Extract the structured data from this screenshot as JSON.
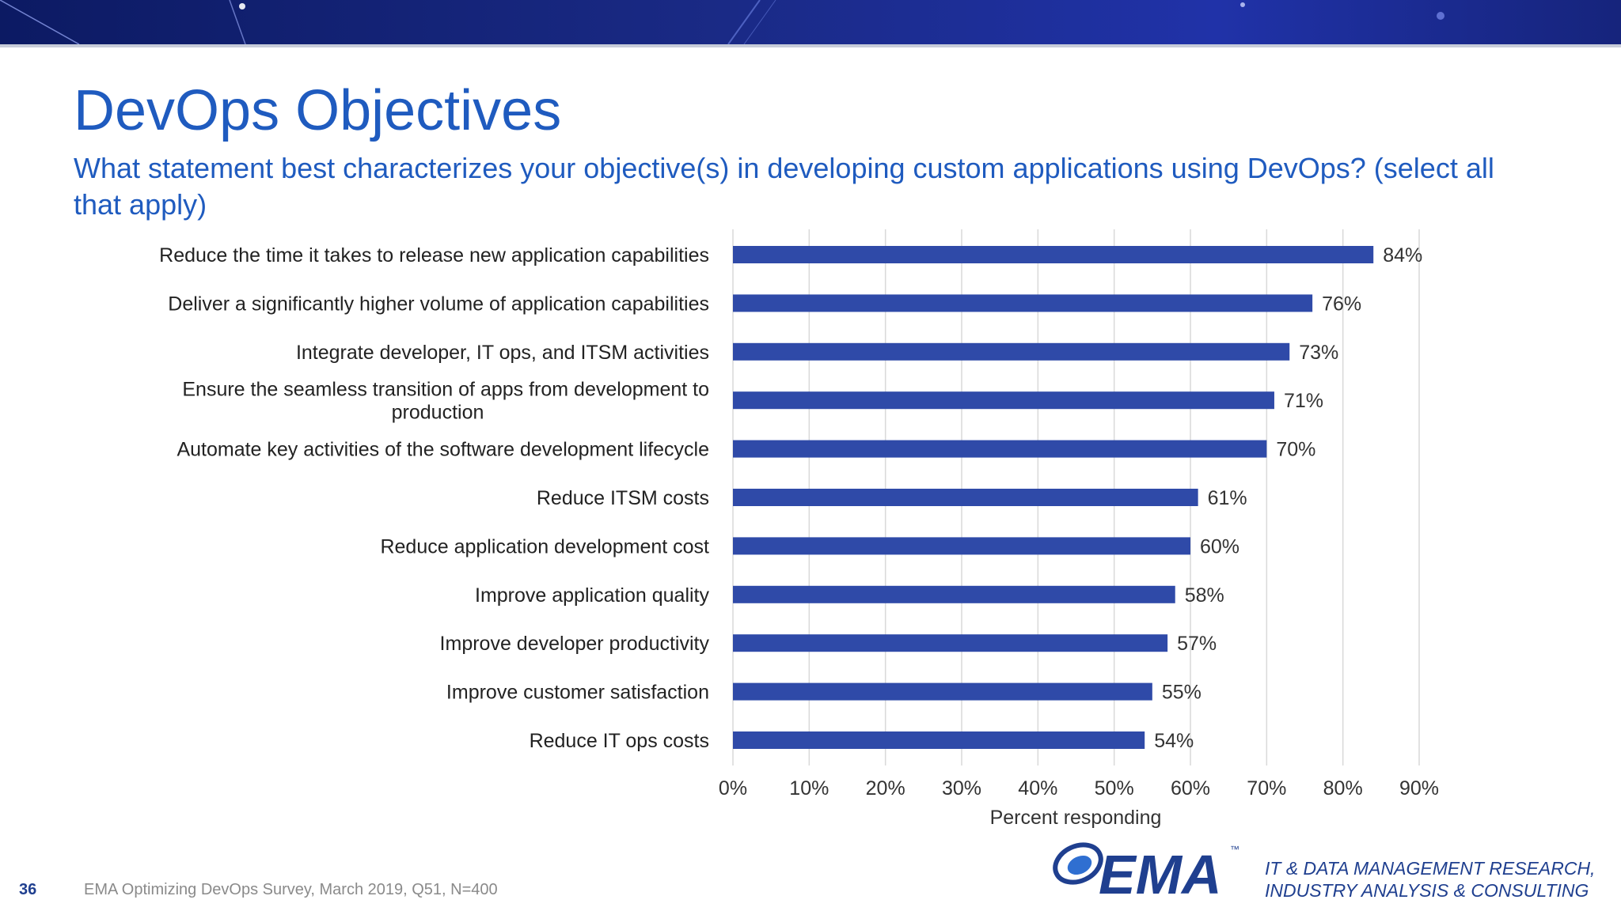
{
  "slide": {
    "title": "DevOps Objectives",
    "subtitle": "What statement best characterizes your objective(s) in developing custom applications using DevOps? (select all that apply)",
    "page_number": "36",
    "source": "EMA  Optimizing DevOps Survey, March 2019, Q51, N=400",
    "tagline_line1": "IT & DATA MANAGEMENT RESEARCH,",
    "tagline_line2": "INDUSTRY ANALYSIS & CONSULTING",
    "logo_text": "EMA",
    "logo_mark": "™"
  },
  "colors": {
    "bar": "#2f4aa8",
    "title": "#1f5bbf",
    "banner": "#132178"
  },
  "chart_data": {
    "type": "bar",
    "orientation": "horizontal",
    "categories": [
      "Reduce the time it takes to release new application capabilities",
      "Deliver a significantly higher volume of application capabilities",
      "Integrate developer, IT ops, and ITSM activities",
      "Ensure the seamless transition of apps from development to production",
      "Automate key activities of the software development lifecycle",
      "Reduce ITSM costs",
      "Reduce application development cost",
      "Improve application quality",
      "Improve developer productivity",
      "Improve customer satisfaction",
      "Reduce IT ops costs"
    ],
    "category_lines": [
      [
        "Reduce the time it takes to release new application capabilities"
      ],
      [
        "Deliver a significantly higher volume of application capabilities"
      ],
      [
        "Integrate developer, IT ops, and ITSM activities"
      ],
      [
        "Ensure the seamless transition of apps from development to",
        "production"
      ],
      [
        "Automate key activities of the software development lifecycle"
      ],
      [
        "Reduce ITSM costs"
      ],
      [
        "Reduce application development cost"
      ],
      [
        "Improve application quality"
      ],
      [
        "Improve developer productivity"
      ],
      [
        "Improve customer satisfaction"
      ],
      [
        "Reduce IT ops costs"
      ]
    ],
    "values": [
      84,
      76,
      73,
      71,
      70,
      61,
      60,
      58,
      57,
      55,
      54
    ],
    "data_labels": [
      "84%",
      "76%",
      "73%",
      "71%",
      "70%",
      "61%",
      "60%",
      "58%",
      "57%",
      "55%",
      "54%"
    ],
    "xlim": [
      0,
      90
    ],
    "xticks": [
      "0%",
      "10%",
      "20%",
      "30%",
      "40%",
      "50%",
      "60%",
      "70%",
      "80%",
      "90%"
    ],
    "xlabel": "Percent responding",
    "ylabel": "",
    "title": "",
    "grid": "vertical"
  }
}
